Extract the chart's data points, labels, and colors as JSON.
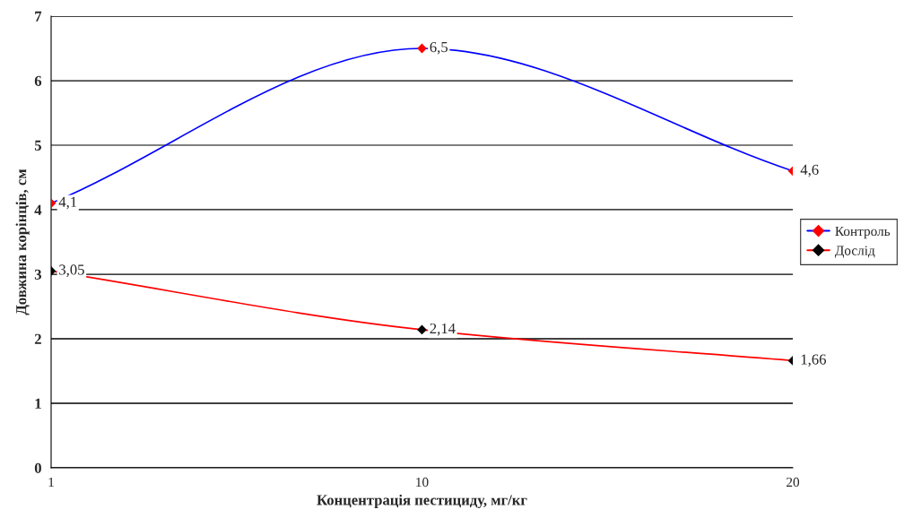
{
  "chart_data": {
    "type": "line",
    "xlabel": "Концентрація пестициду, мг/кг",
    "ylabel": "Довжина корінців, см",
    "categories": [
      "1",
      "10",
      "20"
    ],
    "series": [
      {
        "name": "Контроль",
        "color": "#0000ff",
        "colors": [
          "#ff0000",
          "#ff0000",
          "#ff0000"
        ],
        "values": [
          4.1,
          6.5,
          4.6
        ],
        "value_labels": [
          "4,1",
          "6,5",
          "4,6"
        ]
      },
      {
        "name": "Дослід",
        "color": "#ff0000",
        "colors": [
          "#000000",
          "#000000",
          "#000000"
        ],
        "values": [
          3.05,
          2.14,
          1.66
        ],
        "value_labels": [
          "3,05",
          "2,14",
          "1,66"
        ]
      }
    ],
    "ylim": [
      0,
      7
    ],
    "yticks": [
      0,
      1,
      2,
      3,
      4,
      5,
      6,
      7
    ],
    "grid": "y",
    "legend": "right",
    "marker": "diamond"
  }
}
